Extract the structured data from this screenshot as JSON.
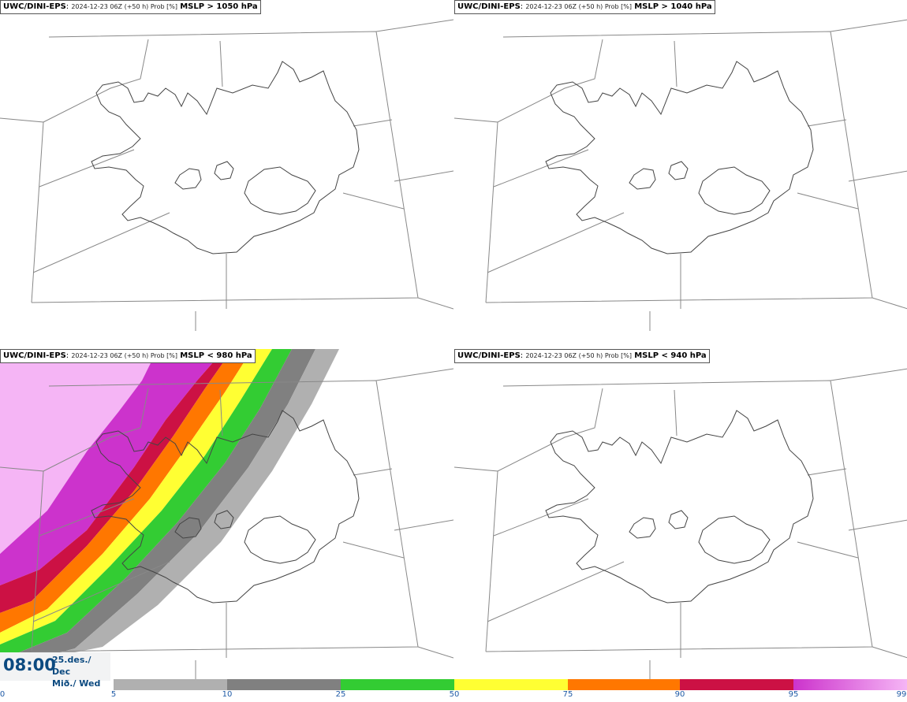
{
  "panels": [
    {
      "model": "UWC/DINI-EPS",
      "run": "2024-12-23 06Z (+50 h) Prob [%]",
      "field": "MSLP > 1050 hPa"
    },
    {
      "model": "UWC/DINI-EPS",
      "run": "2024-12-23 06Z (+50 h) Prob [%]",
      "field": "MSLP > 1040 hPa"
    },
    {
      "model": "UWC/DINI-EPS",
      "run": "2024-12-23 06Z (+50 h) Prob [%]",
      "field": "MSLP < 980 hPa"
    },
    {
      "model": "UWC/DINI-EPS",
      "run": "2024-12-23 06Z (+50 h) Prob [%]",
      "field": "MSLP < 940 hPa"
    }
  ],
  "valid_time": {
    "time": "08:00",
    "date": "25.des./ Dec",
    "weekday": "Mið./ Wed"
  },
  "legend": {
    "ticks": [
      "0",
      "5",
      "10",
      "25",
      "50",
      "75",
      "90",
      "95",
      "99"
    ],
    "colors": [
      "#b0b0b0",
      "#808080",
      "#33cc33",
      "#ffff33",
      "#ff7700",
      "#cc1144",
      "#cc33cc",
      "#f5b5f5"
    ]
  },
  "colors": {
    "coast": "#444444",
    "border": "#888888"
  }
}
